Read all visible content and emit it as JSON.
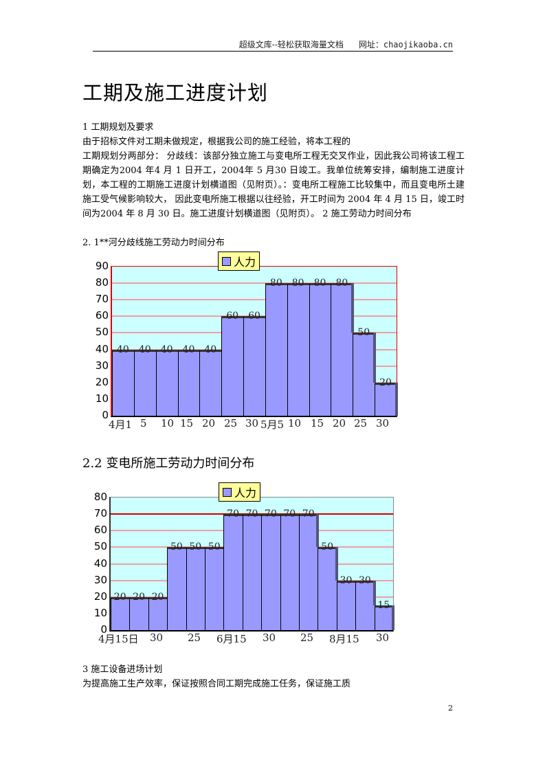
{
  "header": {
    "library": "超级文库--轻松获取海量文档",
    "site": "网址：chaojikaoba.cn"
  },
  "title": "工期及施工进度计划",
  "paragraphs": [
    "1 工期规划及要求",
    "由于招标文件对工期未做规定，根据我公司的施工经验，将本工程的",
    "工期规划分两部分： 分歧线：该部分独立施工与变电所工程无交叉作业，因此我公司将该工程工期确定为2004 年4 月 1 日开工，2004年 5 月30 日竣工。我单位统筹安排，编制施工进度计划，本工程的工期施工进度计划横道图（见附页）。：变电所工程施工比较集中，而且变电所土建施工受气候影响较大， 因此变电所施工根据以往经验，开工时间为 2004 年 4 月 15 日，竣工时间为2004 年 8 月 30 日。施工进度计划横道图（见附页）。 2 施工劳动力时间分布",
    "2. 1**河分歧线施工劳动力时间分布"
  ],
  "section_22": "2.2  变电所施工劳动力时间分布",
  "section_3": {
    "heading": "3 施工设备进场计划",
    "text": "为提高施工生产效率，保证按照合同工期完成施工任务，保证施工质"
  },
  "page_number": "2",
  "chart_data": [
    {
      "type": "bar",
      "title": "",
      "legend": [
        "人力"
      ],
      "legend_position": "top",
      "categories": [
        "4月1",
        "5",
        "10",
        "15",
        "20",
        "25",
        "30",
        "5月5",
        "10",
        "15",
        "20",
        "25",
        "30"
      ],
      "series": [
        {
          "name": "人力",
          "values": [
            40,
            40,
            40,
            40,
            40,
            60,
            60,
            80,
            80,
            80,
            80,
            50,
            20
          ]
        }
      ],
      "yticks": [
        0,
        10,
        20,
        30,
        40,
        50,
        60,
        70,
        80,
        90
      ],
      "ylim": [
        0,
        90
      ],
      "grid": true,
      "colors": {
        "bar": "#9999ff",
        "plot_bg": "#ccffff",
        "grid": "#f0a0a0",
        "legend_bg": "#ffff99",
        "border": "#dd0000"
      }
    },
    {
      "type": "bar",
      "title": "",
      "legend": [
        "人力"
      ],
      "legend_position": "top",
      "categories": [
        "4月15日",
        "",
        "30",
        "",
        "25",
        "",
        "6月15",
        "",
        "30",
        "",
        "25",
        "",
        "8月15",
        "",
        "30"
      ],
      "xtick_labels": [
        "4月15日",
        "30",
        "25",
        "6月15",
        "30",
        "25",
        "8月15",
        "30"
      ],
      "series": [
        {
          "name": "人力",
          "values": [
            20,
            20,
            20,
            50,
            50,
            50,
            70,
            70,
            70,
            70,
            70,
            50,
            30,
            30,
            15
          ]
        }
      ],
      "yticks": [
        0,
        10,
        20,
        30,
        40,
        50,
        60,
        70,
        80
      ],
      "ylim": [
        0,
        80
      ],
      "grid": true,
      "colors": {
        "bar": "#9999ff",
        "plot_bg": "#ccffff",
        "grid": "#f0a0a0",
        "legend_bg": "#ffff99",
        "border": "#888888"
      }
    }
  ]
}
